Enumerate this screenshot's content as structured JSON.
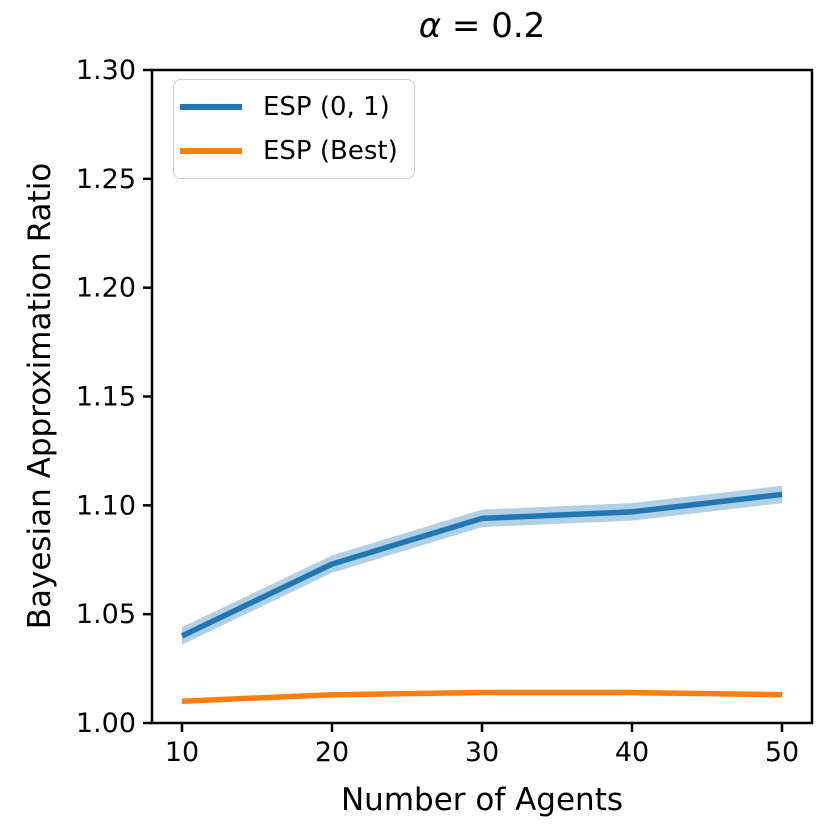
{
  "chart_data": {
    "type": "line",
    "title": "α = 0.2",
    "title_symbol": "α",
    "title_rest": " = 0.2",
    "xlabel": "Number of Agents",
    "ylabel": "Bayesian Approximation Ratio",
    "x": [
      10,
      20,
      30,
      40,
      50
    ],
    "xlim": [
      8,
      52
    ],
    "ylim": [
      1.0,
      1.3
    ],
    "x_ticks": [
      10,
      20,
      30,
      40,
      50
    ],
    "x_tick_labels": [
      "10",
      "20",
      "30",
      "40",
      "50"
    ],
    "y_ticks": [
      1.0,
      1.05,
      1.1,
      1.15,
      1.2,
      1.25,
      1.3
    ],
    "y_tick_labels": [
      "1.00",
      "1.05",
      "1.10",
      "1.15",
      "1.20",
      "1.25",
      "1.30"
    ],
    "grid": false,
    "legend_position": "upper left",
    "axis_color": "#000000",
    "series": [
      {
        "name": "ESP (0, 1)",
        "color": "#1f77b4",
        "values": [
          1.04,
          1.073,
          1.094,
          1.097,
          1.105
        ],
        "band_lower": [
          1.036,
          1.069,
          1.09,
          1.093,
          1.101
        ],
        "band_upper": [
          1.044,
          1.077,
          1.098,
          1.101,
          1.109
        ],
        "band_color": "rgba(31, 119, 180, 0.35)"
      },
      {
        "name": "ESP (Best)",
        "color": "#ff7f0e",
        "values": [
          1.01,
          1.013,
          1.014,
          1.014,
          1.013
        ]
      }
    ]
  }
}
